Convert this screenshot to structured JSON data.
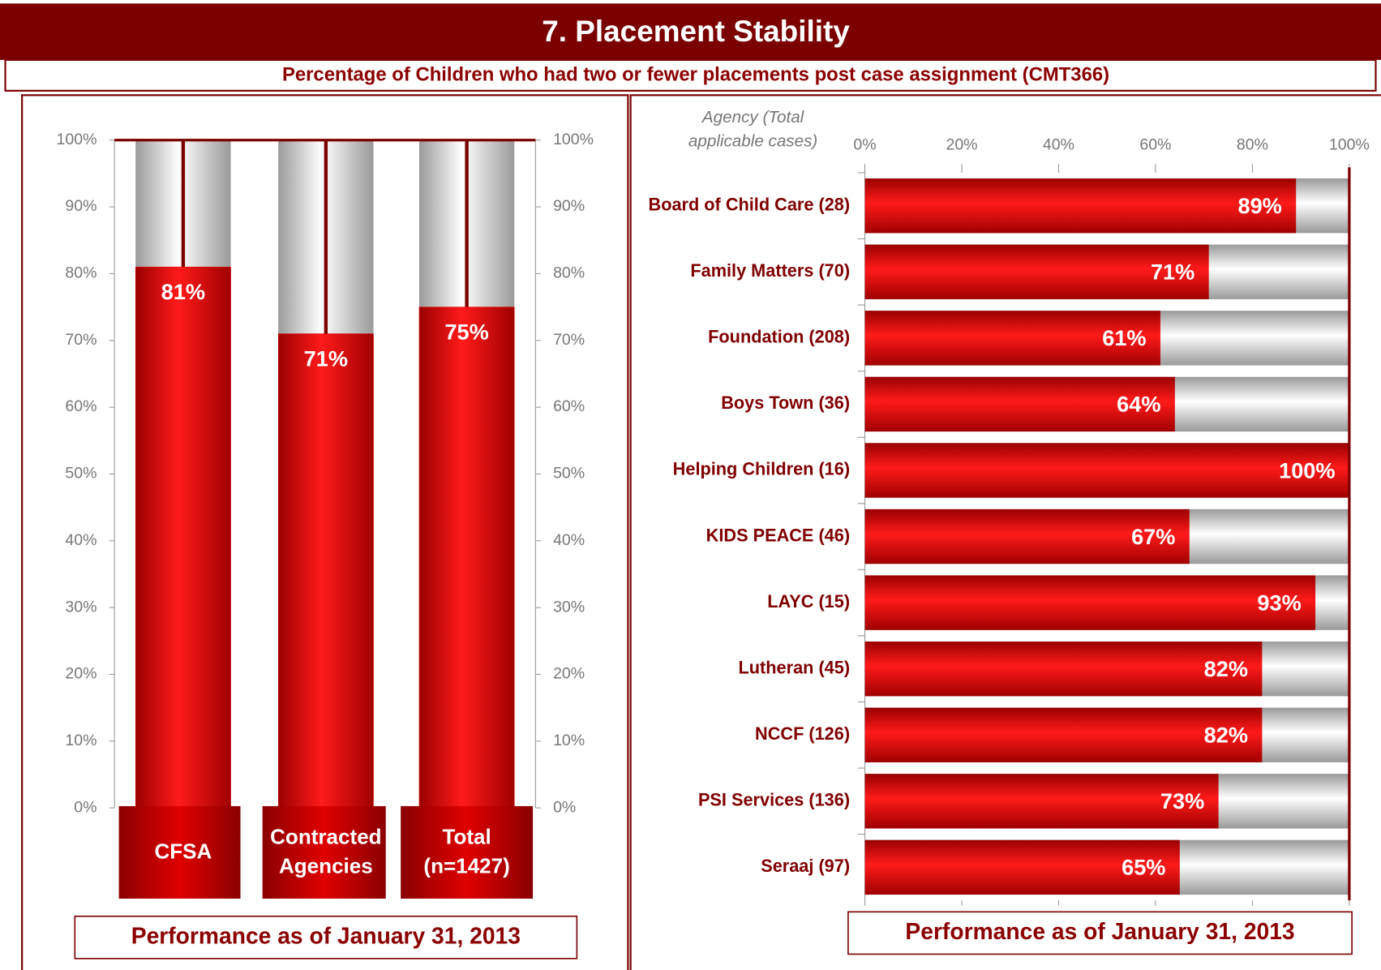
{
  "header": {
    "title": "7.  Placement Stability",
    "subtitle": "Percentage of Children who had two or fewer placements post case assignment (CMT366)"
  },
  "chart_data": [
    {
      "type": "bar",
      "orientation": "vertical",
      "categories": [
        "CFSA",
        "Contracted Agencies",
        "Total (n=1427)"
      ],
      "values": [
        81,
        71,
        75
      ],
      "value_labels": [
        "81%",
        "71%",
        "75%"
      ],
      "color": "#e00000",
      "track_color": "#c8c8c8",
      "ylim": [
        0,
        100
      ],
      "yticks": [
        {
          "value": 0,
          "label": "0%"
        },
        {
          "value": 10,
          "label": "10%"
        },
        {
          "value": 20,
          "label": "20%"
        },
        {
          "value": 30,
          "label": "30%"
        },
        {
          "value": 40,
          "label": "40%"
        },
        {
          "value": 50,
          "label": "50%"
        },
        {
          "value": 60,
          "label": "60%"
        },
        {
          "value": 70,
          "label": "70%"
        },
        {
          "value": 80,
          "label": "80%"
        },
        {
          "value": 90,
          "label": "90%"
        },
        {
          "value": 100,
          "label": "100%"
        }
      ],
      "note": "Performance as of January 31, 2013"
    },
    {
      "type": "hbar",
      "orientation": "horizontal",
      "ylabel": "Agency (Total applicable cases)",
      "categories": [
        "Board of Child Care (28)",
        "Family Matters (70)",
        "Foundation (208)",
        "Boys Town (36)",
        "Helping Children (16)",
        "KIDS PEACE (46)",
        "LAYC (15)",
        "Lutheran (45)",
        "NCCF (126)",
        "PSI Services (136)",
        "Seraaj (97)"
      ],
      "values": [
        89,
        71,
        61,
        64,
        100,
        67,
        93,
        82,
        82,
        73,
        65
      ],
      "value_labels": [
        "89%",
        "71%",
        "61%",
        "64%",
        "100%",
        "67%",
        "93%",
        "82%",
        "82%",
        "73%",
        "65%"
      ],
      "color": "#e00000",
      "track_color": "#c8c8c8",
      "xlim": [
        0,
        100
      ],
      "xticks": [
        {
          "value": 0,
          "label": "0%"
        },
        {
          "value": 20,
          "label": "20%"
        },
        {
          "value": 40,
          "label": "40%"
        },
        {
          "value": 60,
          "label": "60%"
        },
        {
          "value": 80,
          "label": "80%"
        },
        {
          "value": 100,
          "label": "100%"
        }
      ],
      "note": "Performance as of January 31, 2013"
    }
  ]
}
